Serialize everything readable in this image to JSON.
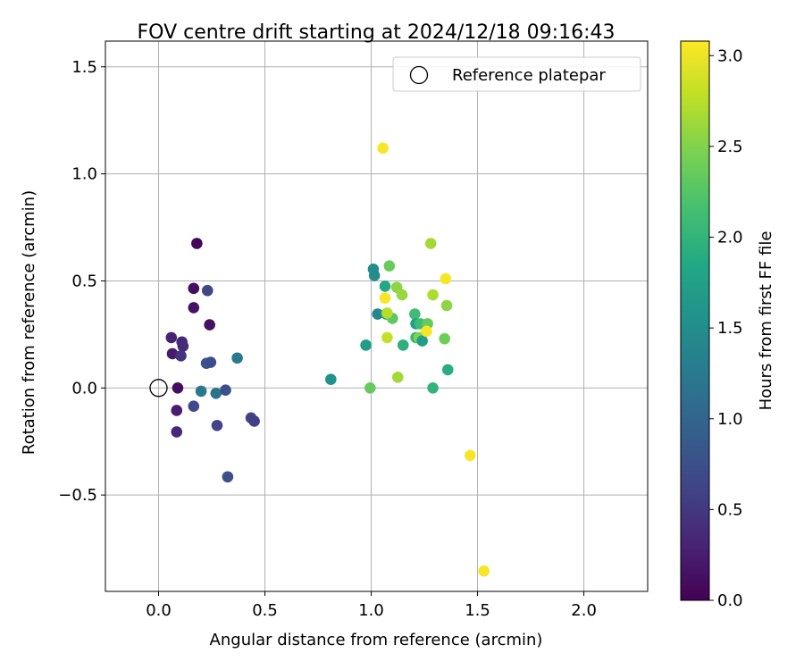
{
  "chart_data": {
    "type": "scatter",
    "title": "FOV centre drift starting at 2024/12/18 09:16:43",
    "xlabel": "Angular distance from reference (arcmin)",
    "ylabel": "Rotation from reference (arcmin)",
    "xlim": [
      -0.25,
      2.3
    ],
    "ylim": [
      -0.95,
      1.62
    ],
    "xticks": [
      0.0,
      0.5,
      1.0,
      1.5,
      2.0
    ],
    "xtick_labels": [
      "0.0",
      "0.5",
      "1.0",
      "1.5",
      "2.0"
    ],
    "yticks": [
      -0.5,
      0.0,
      0.5,
      1.0,
      1.5
    ],
    "ytick_labels": [
      "−0.5",
      "0.0",
      "0.5",
      "1.0",
      "1.5"
    ],
    "grid": true,
    "legend": {
      "location": "top-right",
      "entries": [
        "Reference platepar"
      ]
    },
    "reference_point": {
      "x": 0.0,
      "y": 0.0
    },
    "colorbar": {
      "label": "Hours from first FF file",
      "range": [
        0.0,
        3.08
      ],
      "ticks": [
        0.0,
        0.5,
        1.0,
        1.5,
        2.0,
        2.5,
        3.0
      ],
      "tick_labels": [
        "0.0",
        "0.5",
        "1.0",
        "1.5",
        "2.0",
        "2.5",
        "3.0"
      ],
      "colormap": "viridis"
    },
    "points": [
      {
        "x": 0.18,
        "y": 0.675,
        "hours": 0.05
      },
      {
        "x": 0.165,
        "y": 0.465,
        "hours": 0.1
      },
      {
        "x": 0.165,
        "y": 0.375,
        "hours": 0.15
      },
      {
        "x": 0.24,
        "y": 0.295,
        "hours": 0.12
      },
      {
        "x": 0.06,
        "y": 0.235,
        "hours": 0.3
      },
      {
        "x": 0.11,
        "y": 0.215,
        "hours": 0.35
      },
      {
        "x": 0.115,
        "y": 0.195,
        "hours": 0.38
      },
      {
        "x": 0.065,
        "y": 0.16,
        "hours": 0.22
      },
      {
        "x": 0.105,
        "y": 0.15,
        "hours": 0.45
      },
      {
        "x": 0.23,
        "y": 0.455,
        "hours": 0.65
      },
      {
        "x": 0.225,
        "y": 0.115,
        "hours": 0.8
      },
      {
        "x": 0.245,
        "y": 0.12,
        "hours": 0.72
      },
      {
        "x": 0.09,
        "y": 0.0,
        "hours": 0.1
      },
      {
        "x": 0.085,
        "y": -0.105,
        "hours": 0.25
      },
      {
        "x": 0.085,
        "y": -0.205,
        "hours": 0.35
      },
      {
        "x": 0.2,
        "y": -0.015,
        "hours": 1.25
      },
      {
        "x": 0.27,
        "y": -0.025,
        "hours": 1.18
      },
      {
        "x": 0.315,
        "y": -0.01,
        "hours": 0.75
      },
      {
        "x": 0.165,
        "y": -0.085,
        "hours": 0.68
      },
      {
        "x": 0.275,
        "y": -0.175,
        "hours": 0.62
      },
      {
        "x": 0.435,
        "y": -0.14,
        "hours": 0.62
      },
      {
        "x": 0.45,
        "y": -0.155,
        "hours": 0.58
      },
      {
        "x": 0.325,
        "y": -0.415,
        "hours": 0.74
      },
      {
        "x": 0.37,
        "y": 0.14,
        "hours": 1.25
      },
      {
        "x": 0.81,
        "y": 0.04,
        "hours": 1.55
      },
      {
        "x": 0.975,
        "y": 0.2,
        "hours": 1.7
      },
      {
        "x": 1.01,
        "y": 0.555,
        "hours": 1.5
      },
      {
        "x": 1.015,
        "y": 0.525,
        "hours": 1.48
      },
      {
        "x": 1.03,
        "y": 0.345,
        "hours": 1.4
      },
      {
        "x": 1.065,
        "y": 0.475,
        "hours": 1.85
      },
      {
        "x": 1.085,
        "y": 0.57,
        "hours": 2.35
      },
      {
        "x": 1.07,
        "y": 0.345,
        "hours": 1.8
      },
      {
        "x": 1.1,
        "y": 0.325,
        "hours": 2.3
      },
      {
        "x": 1.065,
        "y": 0.42,
        "hours": 3.05
      },
      {
        "x": 1.075,
        "y": 0.35,
        "hours": 2.75
      },
      {
        "x": 1.075,
        "y": 0.235,
        "hours": 2.8
      },
      {
        "x": 1.12,
        "y": 0.47,
        "hours": 2.55
      },
      {
        "x": 1.145,
        "y": 0.435,
        "hours": 2.6
      },
      {
        "x": 1.15,
        "y": 0.2,
        "hours": 1.95
      },
      {
        "x": 1.205,
        "y": 0.345,
        "hours": 2.1
      },
      {
        "x": 1.21,
        "y": 0.3,
        "hours": 1.75
      },
      {
        "x": 1.23,
        "y": 0.3,
        "hours": 2.1
      },
      {
        "x": 1.21,
        "y": 0.235,
        "hours": 2.05
      },
      {
        "x": 1.225,
        "y": 0.235,
        "hours": 2.5
      },
      {
        "x": 1.24,
        "y": 0.22,
        "hours": 1.7
      },
      {
        "x": 1.265,
        "y": 0.3,
        "hours": 2.35
      },
      {
        "x": 1.26,
        "y": 0.265,
        "hours": 3.05
      },
      {
        "x": 1.28,
        "y": 0.675,
        "hours": 2.65
      },
      {
        "x": 1.29,
        "y": 0.435,
        "hours": 2.7
      },
      {
        "x": 1.35,
        "y": 0.51,
        "hours": 3.05
      },
      {
        "x": 1.355,
        "y": 0.385,
        "hours": 2.55
      },
      {
        "x": 1.345,
        "y": 0.23,
        "hours": 2.4
      },
      {
        "x": 1.36,
        "y": 0.085,
        "hours": 1.9
      },
      {
        "x": 1.29,
        "y": 0.0,
        "hours": 2.0
      },
      {
        "x": 0.995,
        "y": 0.0,
        "hours": 2.35
      },
      {
        "x": 1.125,
        "y": 0.05,
        "hours": 2.65
      },
      {
        "x": 1.055,
        "y": 1.12,
        "hours": 3.05
      },
      {
        "x": 1.465,
        "y": -0.315,
        "hours": 3.05
      },
      {
        "x": 1.53,
        "y": -0.855,
        "hours": 3.05
      }
    ]
  },
  "colors": {
    "grid": "#b0b0b0",
    "reference_marker": "#000000",
    "legend_border": "#cccccc"
  }
}
